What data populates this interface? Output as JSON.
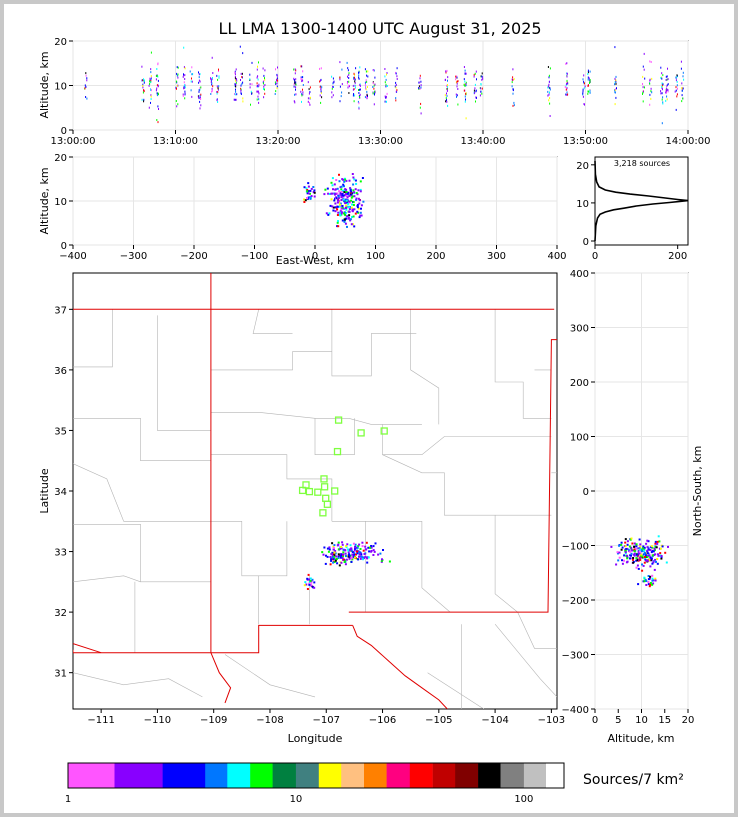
{
  "title": "LL LMA 1300-1400 UTC August 31, 2025",
  "chart_data": [
    {
      "panel": "altitude-time",
      "type": "scatter",
      "ylabel": "Altitude, km",
      "ylim": [
        0,
        20
      ],
      "yticks": [
        "0",
        "10",
        "20"
      ],
      "xticks": [
        "13:00:00",
        "13:10:00",
        "13:20:00",
        "13:30:00",
        "13:40:00",
        "13:50:00",
        "14:00:00"
      ],
      "xlim_minutes": [
        0,
        60
      ],
      "grid": true,
      "columns_minutes": [
        1.2,
        6.8,
        7.5,
        8.2,
        10.1,
        10.8,
        11.5,
        12.3,
        13.5,
        14.1,
        15.8,
        16.4,
        17.3,
        18.0,
        18.6,
        19.8,
        21.6,
        22.3,
        23.0,
        24.1,
        25.3,
        26.1,
        26.8,
        27.4,
        27.9,
        28.6,
        29.3,
        30.5,
        31.5,
        33.8,
        36.4,
        37.4,
        38.2,
        39.2,
        39.8,
        42.9,
        46.4,
        48.1,
        49.8,
        50.3,
        52.9,
        55.6,
        56.3,
        57.4,
        57.9,
        58.8,
        59.4
      ]
    },
    {
      "panel": "altitude-eastwest",
      "type": "scatter",
      "xlabel": "East-West, km",
      "ylabel": "Altitude, km",
      "xlim": [
        -400,
        400
      ],
      "ylim": [
        0,
        20
      ],
      "xticks": [
        "−400",
        "−300",
        "−200",
        "−100",
        "0",
        "100",
        "200",
        "300",
        "400"
      ],
      "yticks": [
        "0",
        "10",
        "20"
      ],
      "clusters": [
        {
          "x_center": -10,
          "x_spread": 4,
          "z_center": 11.5,
          "z_spread": 1.2,
          "points": 30
        },
        {
          "x_center": 50,
          "x_spread": 14,
          "z_center": 10,
          "z_spread": 2.6,
          "points": 240
        }
      ],
      "grid": true
    },
    {
      "panel": "altitude-histogram",
      "type": "line",
      "annotation": "3,218 sources",
      "xlim": [
        0,
        225
      ],
      "ylim": [
        0,
        21
      ],
      "xticks": [
        "0",
        "200"
      ],
      "yticks": [
        "0",
        "10",
        "20"
      ],
      "profile": [
        [
          0,
          0
        ],
        [
          2,
          4
        ],
        [
          6,
          6
        ],
        [
          12,
          7
        ],
        [
          25,
          7.6
        ],
        [
          45,
          8.2
        ],
        [
          70,
          8.6
        ],
        [
          100,
          9.2
        ],
        [
          140,
          9.7
        ],
        [
          180,
          10.1
        ],
        [
          205,
          10.4
        ],
        [
          225,
          10.6
        ],
        [
          200,
          10.9
        ],
        [
          170,
          11.3
        ],
        [
          130,
          11.8
        ],
        [
          85,
          12.3
        ],
        [
          50,
          12.8
        ],
        [
          25,
          13.4
        ],
        [
          10,
          14.2
        ],
        [
          4,
          15.5
        ],
        [
          1,
          17.5
        ],
        [
          0,
          21
        ]
      ]
    },
    {
      "panel": "plan-view",
      "type": "scatter",
      "xlabel": "Longitude",
      "ylabel": "Latitude",
      "xlim": [
        -111.5,
        -102.9
      ],
      "ylim": [
        30.4,
        37.6
      ],
      "xticks": [
        "−111",
        "−110",
        "−109",
        "−108",
        "−107",
        "−106",
        "−105",
        "−104",
        "−103"
      ],
      "yticks": [
        "31",
        "32",
        "33",
        "34",
        "35",
        "36",
        "37"
      ],
      "clusters": [
        {
          "lon_center": -106.55,
          "lon_spread": 0.25,
          "lat_center": 32.98,
          "lat_spread": 0.09,
          "points": 180
        },
        {
          "lon_center": -106.82,
          "lon_spread": 0.07,
          "lat_center": 32.88,
          "lat_spread": 0.05,
          "points": 30
        },
        {
          "lon_center": -107.3,
          "lon_spread": 0.05,
          "lat_center": 32.5,
          "lat_spread": 0.05,
          "points": 25
        }
      ],
      "stations": [
        [
          -106.78,
          35.17
        ],
        [
          -106.38,
          34.96
        ],
        [
          -105.97,
          34.99
        ],
        [
          -106.8,
          34.65
        ],
        [
          -107.36,
          34.1
        ],
        [
          -107.42,
          34.01
        ],
        [
          -107.3,
          33.99
        ],
        [
          -107.15,
          33.98
        ],
        [
          -107.03,
          34.07
        ],
        [
          -106.85,
          34.0
        ],
        [
          -107.04,
          34.2
        ],
        [
          -107.01,
          33.88
        ],
        [
          -106.98,
          33.78
        ],
        [
          -107.06,
          33.64
        ]
      ]
    },
    {
      "panel": "altitude-northsouth",
      "type": "scatter",
      "xlabel": "Altitude, km",
      "ylabel": "North-South, km",
      "xlim": [
        0,
        20
      ],
      "ylim": [
        -400,
        400
      ],
      "xticks": [
        "0",
        "5",
        "10",
        "15",
        "20"
      ],
      "yticks": [
        "−400",
        "−300",
        "−200",
        "−100",
        "0",
        "100",
        "200",
        "300",
        "400"
      ],
      "clusters": [
        {
          "z_center": 10,
          "z_spread": 2.6,
          "y_center": -115,
          "y_spread": 12,
          "points": 220
        },
        {
          "z_center": 11.5,
          "z_spread": 1.0,
          "y_center": -165,
          "y_spread": 5,
          "points": 25
        }
      ],
      "grid": true
    },
    {
      "panel": "colorbar",
      "type": "heatmap",
      "label": "Sources/7 km²",
      "ticks": [
        "1",
        "10",
        "100"
      ],
      "scale": "log",
      "range": [
        1,
        150
      ],
      "colors": [
        "#ff55ff",
        "#8800ff",
        "#0000ff",
        "#0077ff",
        "#00ffff",
        "#00ff00",
        "#008040",
        "#408080",
        "#ffff00",
        "#ffc080",
        "#ff8000",
        "#ff0080",
        "#ff0000",
        "#c00000",
        "#800000",
        "#000000",
        "#808080",
        "#c0c0c0",
        "#ffffff"
      ]
    }
  ]
}
